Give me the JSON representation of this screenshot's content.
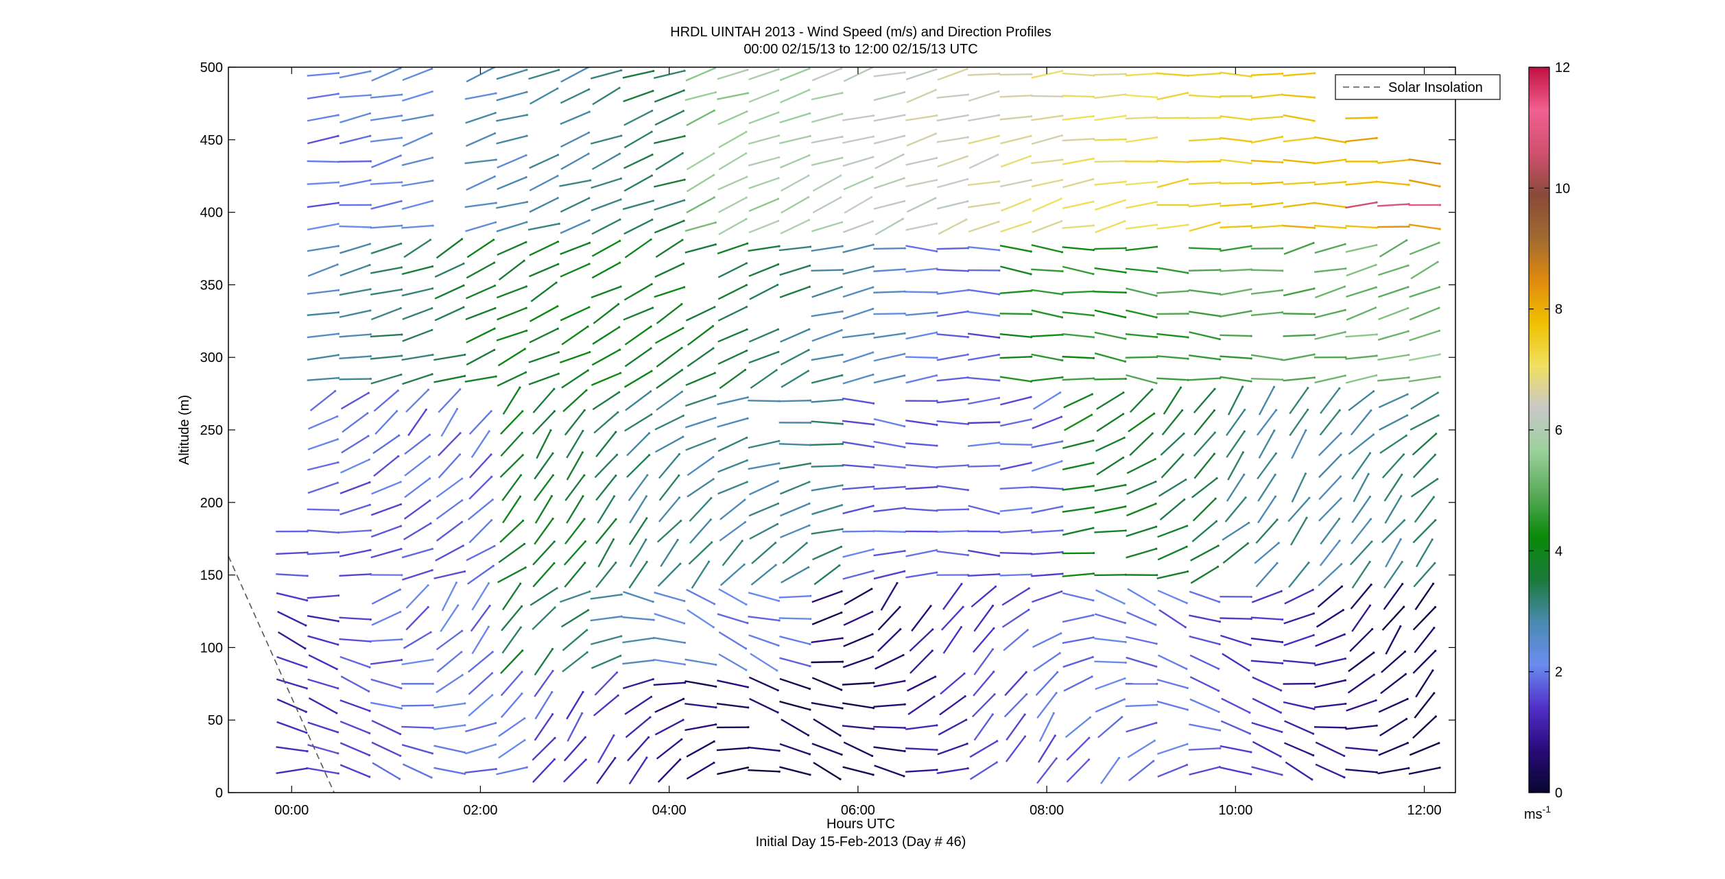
{
  "chart_data": {
    "type": "wind-barb-profile",
    "title": "HRDL UINTAH 2013 - Wind Speed (m/s) and Direction Profiles",
    "subtitle": "00:00 02/15/13 to 12:00 02/15/13  UTC",
    "xlabel": "Hours UTC",
    "xlabel2": "Initial Day 15-Feb-2013 (Day # 46)",
    "ylabel": "Altitude (m)",
    "xlim": [
      -0.67,
      12.33
    ],
    "ylim": [
      0,
      500
    ],
    "x_ticks": [
      0,
      2,
      4,
      6,
      8,
      10,
      12
    ],
    "x_tick_labels": [
      "00:00",
      "02:00",
      "04:00",
      "06:00",
      "08:00",
      "10:00",
      "12:00"
    ],
    "y_ticks": [
      0,
      50,
      100,
      150,
      200,
      250,
      300,
      350,
      400,
      450,
      500
    ],
    "y_tick_labels": [
      "0",
      "50",
      "100",
      "150",
      "200",
      "250",
      "300",
      "350",
      "400",
      "450",
      "500"
    ],
    "legend": {
      "entries": [
        "Solar Insolation"
      ],
      "placement": "top-right",
      "line_style": "dashed",
      "color": "#555555"
    },
    "colorbar": {
      "range": [
        0,
        12
      ],
      "ticks": [
        0,
        2,
        4,
        6,
        8,
        10,
        12
      ],
      "tick_labels": [
        "0",
        "2",
        "4",
        "6",
        "8",
        "10",
        "12"
      ],
      "unit_label": "ms",
      "unit_exponent": "-1",
      "colors": [
        "#070730",
        "#2a0a7a",
        "#5030c8",
        "#6a8cf0",
        "#4a8ab0",
        "#1a7a3a",
        "#0a8a0a",
        "#5aaa5a",
        "#9ad09a",
        "#c8c8c8",
        "#f0e060",
        "#f0c000",
        "#e08a10",
        "#a06a30",
        "#8a4a3a",
        "#d05070",
        "#f06090",
        "#c01040"
      ]
    },
    "solar_insolation": {
      "x": [
        -0.67,
        0.45
      ],
      "y": [
        163,
        0
      ]
    },
    "profile_times_hours": [
      0.0,
      0.33,
      0.67,
      1.0,
      1.33,
      1.67,
      2.0,
      2.33,
      2.67,
      3.0,
      3.33,
      3.67,
      4.0,
      4.33,
      4.67,
      5.0,
      5.33,
      5.67,
      6.0,
      6.33,
      6.67,
      7.0,
      7.33,
      7.67,
      8.0,
      8.33,
      8.67,
      9.0,
      9.33,
      9.67,
      10.0,
      10.33,
      10.67,
      11.0,
      11.33,
      11.67,
      12.0
    ],
    "altitude_levels_m": [
      15,
      30,
      45,
      60,
      75,
      90,
      105,
      120,
      135,
      150,
      165,
      180,
      195,
      210,
      225,
      240,
      255,
      270,
      285,
      300,
      315,
      330,
      345,
      360,
      375,
      390,
      405,
      420,
      435,
      450,
      465,
      480,
      495
    ],
    "note": "Wind vectors at ~37 profiles x 33 levels; speed (m/s) shown by color and direction by line orientation. Speeds: ~1-3 m/s (purple/blue) below 150 m through night, ~3-5 m/s (green) in mid layer 02:00-06:00 and above 250 m after 08:00, ~6-8 m/s (yellow/orange) above 380 m after 08:00, up to ~10-11 m/s (brown/red) near 400 m at 12:00."
  }
}
